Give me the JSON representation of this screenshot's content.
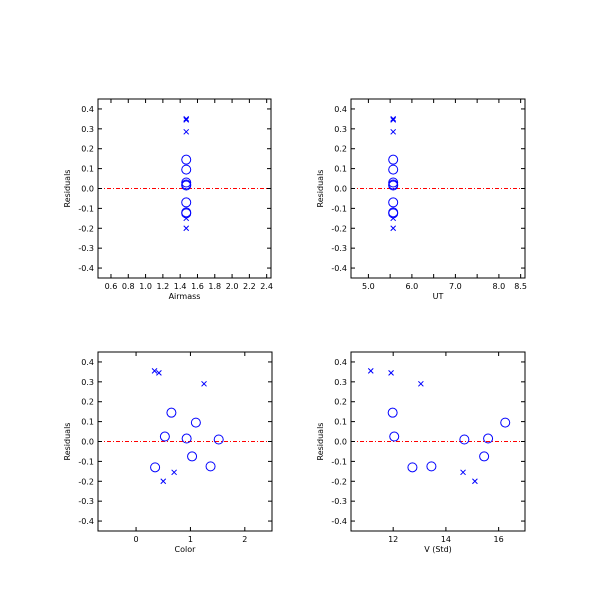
{
  "colors": {
    "background": "#ffffff",
    "axes": "#000000",
    "marker": "#0000ff",
    "zero_line": "#ff0000"
  },
  "chart_data": [
    {
      "type": "scatter",
      "xlabel": "Airmass",
      "ylabel": "Residuals",
      "xlim": [
        0.45,
        2.45
      ],
      "ylim": [
        -0.45,
        0.45
      ],
      "xticks": [
        0.6,
        0.8,
        1.0,
        1.2,
        1.4,
        1.6,
        1.8,
        2.0,
        2.2,
        2.4
      ],
      "xtick_labels": [
        "0.6",
        "0.8",
        "1.0",
        "1.2",
        "1.4",
        "1.6",
        "1.8",
        "2.0",
        "2.2",
        "2.4"
      ],
      "yticks": [
        -0.4,
        -0.3,
        -0.2,
        -0.1,
        0.0,
        0.1,
        0.2,
        0.3,
        0.4
      ],
      "ytick_labels": [
        "-0.4",
        "-0.3",
        "-0.2",
        "-0.1",
        "0.0",
        "0.1",
        "0.2",
        "0.3",
        "0.4"
      ],
      "grid": false,
      "zero_line": true,
      "series": [
        {
          "marker": "circle",
          "points": [
            {
              "x": 1.47,
              "y": 0.145
            },
            {
              "x": 1.47,
              "y": 0.095
            },
            {
              "x": 1.47,
              "y": 0.03
            },
            {
              "x": 1.47,
              "y": 0.02
            },
            {
              "x": 1.47,
              "y": 0.015
            },
            {
              "x": 1.47,
              "y": -0.07
            },
            {
              "x": 1.47,
              "y": -0.12
            },
            {
              "x": 1.47,
              "y": -0.125
            }
          ]
        },
        {
          "marker": "cross",
          "points": [
            {
              "x": 1.47,
              "y": 0.35
            },
            {
              "x": 1.47,
              "y": 0.345
            },
            {
              "x": 1.47,
              "y": 0.285
            },
            {
              "x": 1.47,
              "y": -0.15
            },
            {
              "x": 1.47,
              "y": -0.2
            }
          ]
        }
      ]
    },
    {
      "type": "scatter",
      "xlabel": "UT",
      "ylabel": "Residuals",
      "xlim": [
        4.6,
        8.6
      ],
      "ylim": [
        -0.45,
        0.45
      ],
      "xticks": [
        5.0,
        5.5,
        6.0,
        6.5,
        7.0,
        7.5,
        8.0,
        8.5
      ],
      "xtick_labels": [
        "5.0",
        "",
        "6.0",
        "",
        "7.0",
        "",
        "8.0",
        "8.5"
      ],
      "yticks": [
        -0.4,
        -0.3,
        -0.2,
        -0.1,
        0.0,
        0.1,
        0.2,
        0.3,
        0.4
      ],
      "ytick_labels": [
        "-0.4",
        "-0.3",
        "-0.2",
        "-0.1",
        "0.0",
        "0.1",
        "0.2",
        "0.3",
        "0.4"
      ],
      "grid": false,
      "zero_line": true,
      "series": [
        {
          "marker": "circle",
          "points": [
            {
              "x": 5.57,
              "y": 0.145
            },
            {
              "x": 5.57,
              "y": 0.095
            },
            {
              "x": 5.57,
              "y": 0.03
            },
            {
              "x": 5.57,
              "y": 0.02
            },
            {
              "x": 5.57,
              "y": 0.015
            },
            {
              "x": 5.57,
              "y": -0.07
            },
            {
              "x": 5.57,
              "y": -0.12
            },
            {
              "x": 5.57,
              "y": -0.125
            }
          ]
        },
        {
          "marker": "cross",
          "points": [
            {
              "x": 5.57,
              "y": 0.35
            },
            {
              "x": 5.57,
              "y": 0.345
            },
            {
              "x": 5.57,
              "y": 0.285
            },
            {
              "x": 5.57,
              "y": -0.15
            },
            {
              "x": 5.57,
              "y": -0.2
            }
          ]
        }
      ]
    },
    {
      "type": "scatter",
      "xlabel": "Color",
      "ylabel": "Residuals",
      "xlim": [
        -0.7,
        2.5
      ],
      "ylim": [
        -0.45,
        0.45
      ],
      "xticks": [
        0,
        1,
        2
      ],
      "xtick_labels": [
        "0",
        "1",
        "2"
      ],
      "yticks": [
        -0.4,
        -0.3,
        -0.2,
        -0.1,
        0.0,
        0.1,
        0.2,
        0.3,
        0.4
      ],
      "ytick_labels": [
        "-0.4",
        "-0.3",
        "-0.2",
        "-0.1",
        "0.0",
        "0.1",
        "0.2",
        "0.3",
        "0.4"
      ],
      "grid": false,
      "zero_line": true,
      "series": [
        {
          "marker": "circle",
          "points": [
            {
              "x": 0.35,
              "y": -0.13
            },
            {
              "x": 0.53,
              "y": 0.025
            },
            {
              "x": 0.65,
              "y": 0.145
            },
            {
              "x": 0.93,
              "y": 0.015
            },
            {
              "x": 1.03,
              "y": -0.075
            },
            {
              "x": 1.1,
              "y": 0.095
            },
            {
              "x": 1.37,
              "y": -0.125
            },
            {
              "x": 1.52,
              "y": 0.01
            }
          ]
        },
        {
          "marker": "cross",
          "points": [
            {
              "x": 0.34,
              "y": 0.355
            },
            {
              "x": 0.42,
              "y": 0.345
            },
            {
              "x": 0.5,
              "y": -0.2
            },
            {
              "x": 0.7,
              "y": -0.155
            },
            {
              "x": 1.25,
              "y": 0.29
            }
          ]
        }
      ]
    },
    {
      "type": "scatter",
      "xlabel": "V (Std)",
      "ylabel": "Residuals",
      "xlim": [
        10.4,
        17.0
      ],
      "ylim": [
        -0.45,
        0.45
      ],
      "xticks": [
        12,
        14,
        16
      ],
      "xtick_labels": [
        "12",
        "14",
        "16"
      ],
      "yticks": [
        -0.4,
        -0.3,
        -0.2,
        -0.1,
        0.0,
        0.1,
        0.2,
        0.3,
        0.4
      ],
      "ytick_labels": [
        "-0.4",
        "-0.3",
        "-0.2",
        "-0.1",
        "0.0",
        "0.1",
        "0.2",
        "0.3",
        "0.4"
      ],
      "grid": false,
      "zero_line": true,
      "series": [
        {
          "marker": "circle",
          "points": [
            {
              "x": 11.98,
              "y": 0.145
            },
            {
              "x": 12.04,
              "y": 0.025
            },
            {
              "x": 12.73,
              "y": -0.13
            },
            {
              "x": 13.45,
              "y": -0.125
            },
            {
              "x": 14.7,
              "y": 0.01
            },
            {
              "x": 15.45,
              "y": -0.075
            },
            {
              "x": 15.6,
              "y": 0.015
            },
            {
              "x": 16.25,
              "y": 0.095
            }
          ]
        },
        {
          "marker": "cross",
          "points": [
            {
              "x": 11.15,
              "y": 0.355
            },
            {
              "x": 11.92,
              "y": 0.345
            },
            {
              "x": 13.05,
              "y": 0.29
            },
            {
              "x": 14.65,
              "y": -0.155
            },
            {
              "x": 15.1,
              "y": -0.2
            }
          ]
        }
      ]
    }
  ]
}
